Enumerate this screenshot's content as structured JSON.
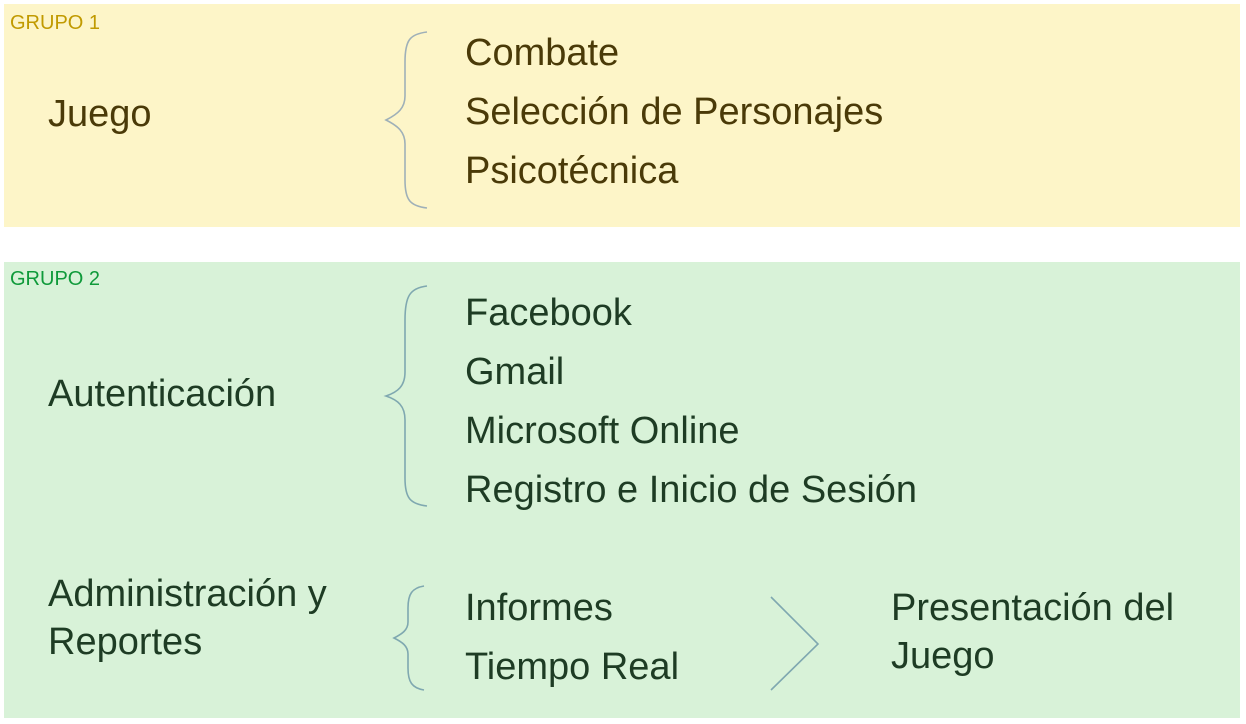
{
  "groups": [
    {
      "label": "GRUPO 1",
      "categories": [
        {
          "name": "Juego",
          "items": [
            "Combate",
            "Selección de Personajes",
            "Psicotécnica"
          ]
        }
      ]
    },
    {
      "label": "GRUPO 2",
      "categories": [
        {
          "name": "Autenticación",
          "items": [
            "Facebook",
            "Gmail",
            "Microsoft Online",
            "Registro e Inicio de Sesión"
          ]
        },
        {
          "name_line1": "Administración y",
          "name_line2": "Reportes",
          "items": [
            "Informes",
            "Tiempo Real"
          ],
          "outcome_line1": "Presentación del",
          "outcome_line2": "Juego"
        }
      ]
    }
  ],
  "colors": {
    "group1_bg": "#fdf5c8",
    "group1_label": "#c19a00",
    "group2_bg": "#d8f2d8",
    "group2_label": "#0f9a3a",
    "brace": "#9fb0b8"
  },
  "icons": [
    "left-brace-icon",
    "chevron-right-icon"
  ]
}
